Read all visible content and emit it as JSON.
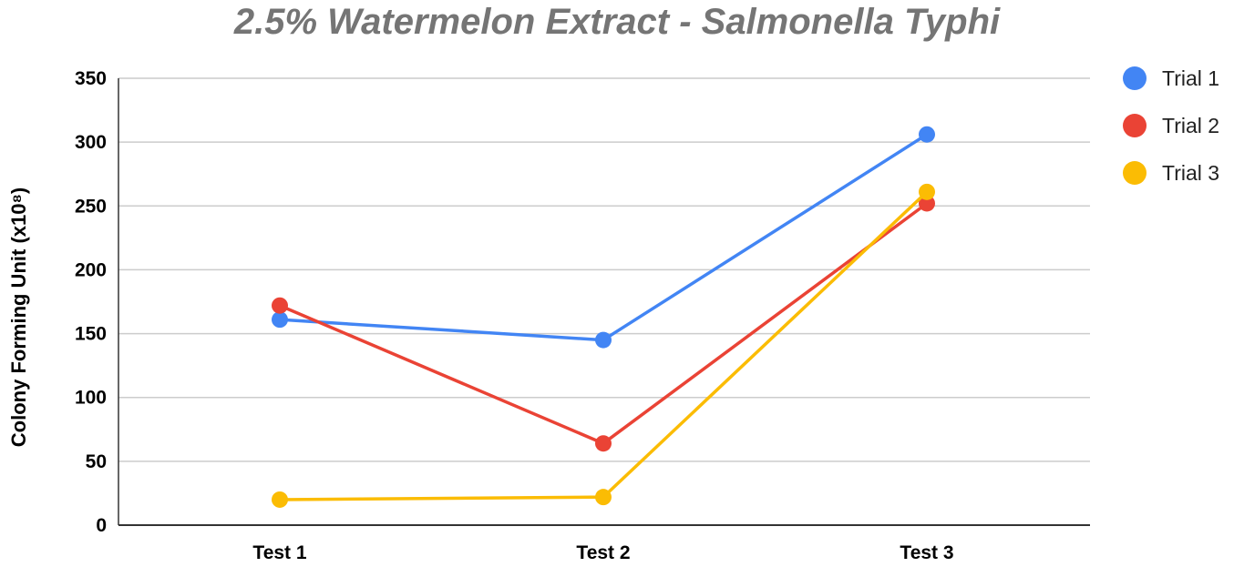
{
  "chart_data": {
    "type": "line",
    "title": "2.5% Watermelon Extract -  Salmonella Typhi",
    "xlabel": "",
    "ylabel": "Colony Forming Unit (x10⁸)",
    "categories": [
      "Test 1",
      "Test 2",
      "Test 3"
    ],
    "ylim": [
      0,
      350
    ],
    "yticks": [
      0,
      50,
      100,
      150,
      200,
      250,
      300,
      350
    ],
    "grid": true,
    "legend_position": "right",
    "series": [
      {
        "name": "Trial 1",
        "color": "#4285f4",
        "values": [
          161,
          145,
          306
        ]
      },
      {
        "name": "Trial 2",
        "color": "#ea4335",
        "values": [
          172,
          64,
          252
        ]
      },
      {
        "name": "Trial 3",
        "color": "#fbbc04",
        "values": [
          20,
          22,
          261
        ]
      }
    ]
  }
}
